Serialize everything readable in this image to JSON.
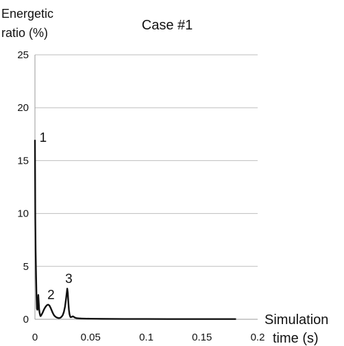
{
  "chart_data": {
    "type": "line",
    "title": "Case #1",
    "ylabel": [
      "Energetic",
      "ratio (%)"
    ],
    "xlabel": [
      "Simulation",
      "time (s)"
    ],
    "xlim": [
      0,
      0.2
    ],
    "ylim": [
      0,
      25
    ],
    "xticks": [
      0,
      0.05,
      0.1,
      0.15,
      0.2
    ],
    "xtick_labels": [
      "0",
      "0.05",
      "0.1",
      "0.15",
      "0.2"
    ],
    "yticks": [
      0,
      5,
      10,
      15,
      20,
      25
    ],
    "ytick_labels": [
      "0",
      "5",
      "10",
      "15",
      "20",
      "25"
    ],
    "grid": "horizontal",
    "legend": "none",
    "line_color": "#111111",
    "series": [
      {
        "x": [
          0,
          0.0003,
          0.0006,
          0.001,
          0.0014,
          0.0018,
          0.0022,
          0.0026,
          0.003,
          0.0034,
          0.0038,
          0.0042,
          0.0046,
          0.005,
          0.0055,
          0.006,
          0.007,
          0.008,
          0.009,
          0.01,
          0.011,
          0.012,
          0.013,
          0.014,
          0.015,
          0.016,
          0.017,
          0.018,
          0.019,
          0.02,
          0.021,
          0.022,
          0.023,
          0.024,
          0.025,
          0.026,
          0.027,
          0.028,
          0.029,
          0.0295,
          0.03,
          0.0305,
          0.031,
          0.0315,
          0.032,
          0.033,
          0.034,
          0.035,
          0.036,
          0.037,
          0.038,
          0.039,
          0.04,
          0.042,
          0.045,
          0.05,
          0.06,
          0.08,
          0.1,
          0.12,
          0.14,
          0.16,
          0.18
        ],
        "y": [
          16.9,
          9.5,
          6.5,
          4.2,
          2.2,
          1.0,
          0.9,
          1.3,
          2.3,
          1.6,
          0.9,
          0.6,
          0.4,
          0.3,
          0.35,
          0.45,
          0.65,
          0.9,
          1.1,
          1.25,
          1.35,
          1.38,
          1.3,
          1.1,
          0.85,
          0.6,
          0.4,
          0.28,
          0.2,
          0.15,
          0.12,
          0.12,
          0.15,
          0.25,
          0.4,
          0.7,
          1.2,
          2.0,
          2.9,
          2.5,
          1.6,
          0.9,
          0.5,
          0.3,
          0.2,
          0.22,
          0.28,
          0.22,
          0.15,
          0.12,
          0.1,
          0.09,
          0.08,
          0.07,
          0.06,
          0.05,
          0.04,
          0.03,
          0.03,
          0.02,
          0.02,
          0.02,
          0.02
        ]
      }
    ],
    "annotations": [
      {
        "text": "1",
        "x": 0.001,
        "y": 16.9
      },
      {
        "text": "2",
        "x": 0.013,
        "y": 1.38
      },
      {
        "text": "3",
        "x": 0.029,
        "y": 2.9
      }
    ]
  }
}
